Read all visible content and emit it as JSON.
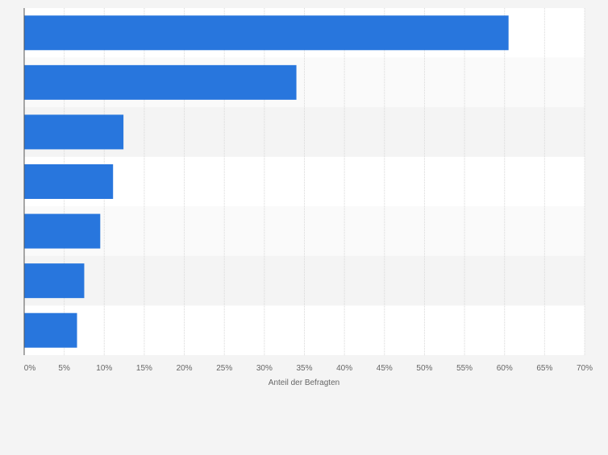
{
  "chart_data": {
    "type": "bar",
    "orientation": "horizontal",
    "categories": [
      "",
      "",
      "",
      "",
      "",
      "",
      ""
    ],
    "values": [
      60.5,
      34.0,
      12.4,
      11.1,
      9.5,
      7.5,
      6.6
    ],
    "xlim": [
      0,
      70
    ],
    "xticks": [
      "0%",
      "5%",
      "10%",
      "15%",
      "20%",
      "25%",
      "30%",
      "35%",
      "40%",
      "45%",
      "50%",
      "55%",
      "60%",
      "65%",
      "70%"
    ],
    "xlabel": "Anteil der Befragten",
    "ylabel": "",
    "title": "",
    "grid": true,
    "bar_color": "#2876dd",
    "band_colors": [
      "#ffffff",
      "#fafafa",
      "#f4f4f4"
    ]
  }
}
